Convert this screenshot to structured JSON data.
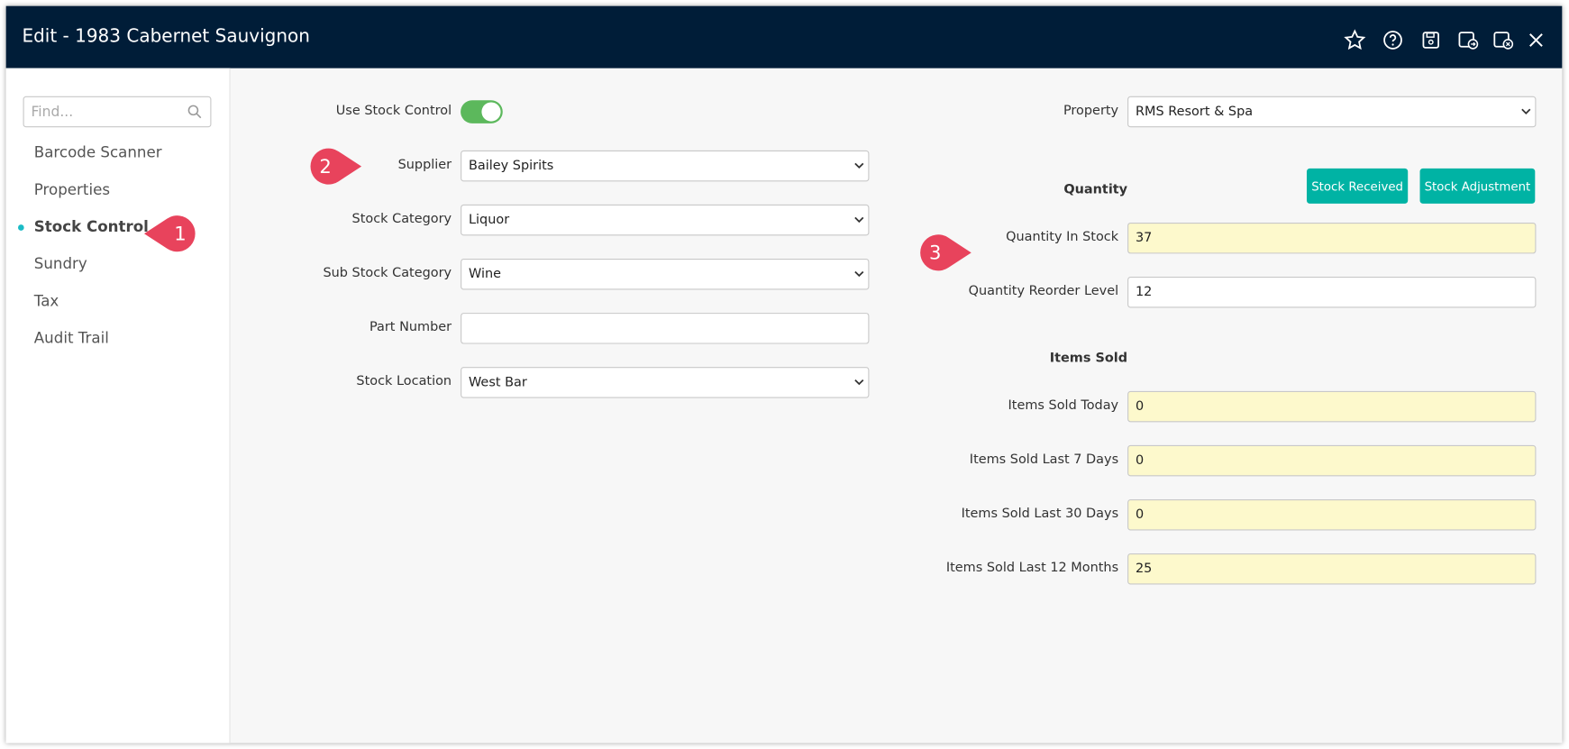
{
  "header": {
    "title": "Edit - 1983 Cabernet Sauvignon"
  },
  "sidebar": {
    "search_placeholder": "Find...",
    "items": [
      "Barcode Scanner",
      "Properties",
      "Stock Control",
      "Sundry",
      "Tax",
      "Audit Trail"
    ],
    "active_index": 2
  },
  "callouts": [
    "1",
    "2",
    "3"
  ],
  "left_form": {
    "toggle": {
      "label": "Use Stock Control",
      "on": true
    },
    "fields": [
      {
        "label": "Supplier",
        "value": "Bailey Spirits",
        "kind": "select"
      },
      {
        "label": "Stock Category",
        "value": "Liquor",
        "kind": "select"
      },
      {
        "label": "Sub Stock Category",
        "value": "Wine",
        "kind": "select"
      },
      {
        "label": "Part Number",
        "kind": "text"
      },
      {
        "label": "Stock Location",
        "value": "West Bar",
        "kind": "select"
      }
    ]
  },
  "right_form": {
    "property": {
      "label": "Property",
      "value": "RMS Resort & Spa",
      "kind": "select"
    },
    "quantity": {
      "heading": "Quantity",
      "buttons": [
        "Stock Received",
        "Stock Adjustment"
      ],
      "fields": [
        {
          "label": "Quantity In Stock",
          "value": 37,
          "readonly": true
        },
        {
          "label": "Quantity Reorder Level",
          "value": 12,
          "readonly": false
        }
      ]
    },
    "items_sold": {
      "heading": "Items Sold",
      "fields": [
        {
          "label": "Items Sold Today",
          "value": 0,
          "readonly": true
        },
        {
          "label": "Items Sold Last 7 Days",
          "value": 0,
          "readonly": true
        },
        {
          "label": "Items Sold Last 30 Days",
          "value": 0,
          "readonly": true
        },
        {
          "label": "Items Sold Last 12 Months",
          "value": 25,
          "readonly": true
        }
      ]
    }
  }
}
